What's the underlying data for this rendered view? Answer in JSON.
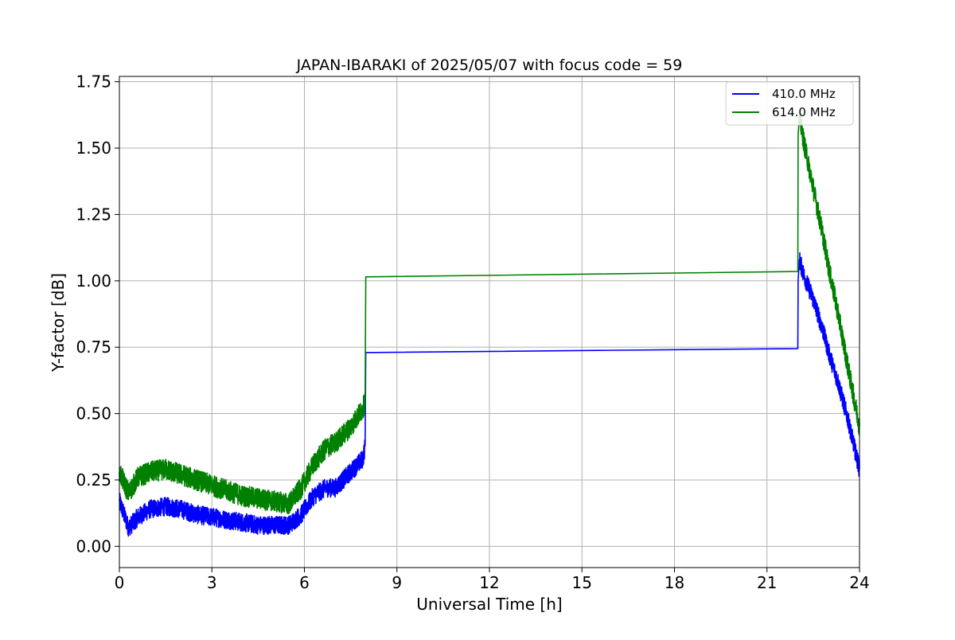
{
  "chart_data": {
    "type": "line",
    "title": "JAPAN-IBARAKI of 2025/05/07 with focus code = 59",
    "xlabel": "Universal Time [h]",
    "ylabel": "Y-factor [dB]",
    "xlim": [
      0,
      24
    ],
    "ylim": [
      -0.08,
      1.77
    ],
    "xticks": [
      0,
      3,
      6,
      9,
      12,
      15,
      18,
      21,
      24
    ],
    "xtick_labels": [
      "0",
      "3",
      "6",
      "9",
      "12",
      "15",
      "18",
      "21",
      "24"
    ],
    "yticks": [
      0.0,
      0.25,
      0.5,
      0.75,
      1.0,
      1.25,
      1.5,
      1.75
    ],
    "ytick_labels": [
      "0.00",
      "0.25",
      "0.50",
      "0.75",
      "1.00",
      "1.25",
      "1.50",
      "1.75"
    ],
    "grid": true,
    "legend_position": "top-right",
    "series": [
      {
        "name": "410.0 MHz",
        "color": "#0000ff",
        "x": [
          0.0,
          0.3,
          0.6,
          1.0,
          1.5,
          2.0,
          2.5,
          3.0,
          3.5,
          4.0,
          4.5,
          5.0,
          5.5,
          5.9,
          6.3,
          6.7,
          7.0,
          7.5,
          7.9,
          7.97,
          7.99,
          22.0,
          22.01,
          22.05,
          22.2,
          22.5,
          22.8,
          23.0,
          23.3,
          23.6,
          24.0
        ],
        "y": [
          0.17,
          0.07,
          0.11,
          0.14,
          0.15,
          0.14,
          0.12,
          0.11,
          0.1,
          0.09,
          0.08,
          0.08,
          0.08,
          0.12,
          0.19,
          0.22,
          0.22,
          0.28,
          0.33,
          0.38,
          0.73,
          0.745,
          1.0,
          1.08,
          1.02,
          0.93,
          0.82,
          0.73,
          0.62,
          0.49,
          0.29
        ],
        "noise": 0.035
      },
      {
        "name": "614.0 MHz",
        "color": "#008000",
        "x": [
          0.0,
          0.3,
          0.6,
          1.0,
          1.5,
          2.0,
          2.5,
          3.0,
          3.5,
          4.0,
          4.5,
          5.0,
          5.5,
          5.9,
          6.3,
          6.7,
          7.0,
          7.5,
          7.9,
          7.97,
          7.99,
          22.0,
          22.01,
          22.05,
          22.2,
          22.5,
          22.8,
          23.0,
          23.3,
          23.6,
          24.0
        ],
        "y": [
          0.28,
          0.2,
          0.26,
          0.28,
          0.29,
          0.27,
          0.25,
          0.23,
          0.21,
          0.19,
          0.18,
          0.17,
          0.16,
          0.22,
          0.31,
          0.37,
          0.39,
          0.45,
          0.52,
          0.55,
          1.015,
          1.035,
          1.55,
          1.62,
          1.52,
          1.35,
          1.18,
          1.05,
          0.88,
          0.69,
          0.45
        ],
        "noise": 0.04
      }
    ]
  }
}
